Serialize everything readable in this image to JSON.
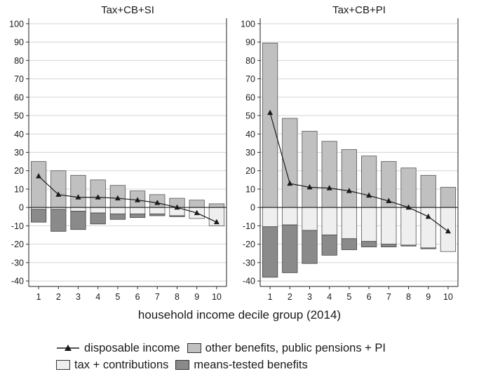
{
  "colors": {
    "other_benefits": "#c0c0c0",
    "tax_contributions": "#efefef",
    "means_tested": "#8a8a8a",
    "line": "#1a1a1a",
    "grid": "#d4d4d4"
  },
  "x_caption": "household income decile group (2014)",
  "legend": {
    "disposable": "disposable income",
    "other_benefits": "other benefits, public pensions + PI",
    "tax": "tax + contributions",
    "means_tested": "means-tested benefits"
  },
  "chart_data": [
    {
      "type": "bar",
      "title": "Tax+CB+SI",
      "categories": [
        "1",
        "2",
        "3",
        "4",
        "5",
        "6",
        "7",
        "8",
        "9",
        "10"
      ],
      "ylim": [
        -43,
        103
      ],
      "yticks": [
        -40,
        -30,
        -20,
        -10,
        0,
        10,
        20,
        30,
        40,
        50,
        60,
        70,
        80,
        90,
        100
      ],
      "grid": true,
      "series": [
        {
          "name": "other benefits, public pensions + PI",
          "values": [
            25,
            20,
            17.5,
            15,
            12,
            9,
            7,
            5,
            4,
            2
          ]
        },
        {
          "name": "tax + contributions",
          "values": [
            -1,
            -1,
            -2,
            -3,
            -3.5,
            -3.5,
            -3.5,
            -4.5,
            -6,
            -10
          ]
        },
        {
          "name": "means-tested benefits",
          "values": [
            -7,
            -12,
            -10,
            -6,
            -3,
            -2,
            -1,
            -0.5,
            0,
            0
          ]
        },
        {
          "name": "disposable income",
          "values": [
            17,
            7,
            5.5,
            5.5,
            5,
            4,
            2.5,
            0,
            -3,
            -8
          ]
        }
      ]
    },
    {
      "type": "bar",
      "title": "Tax+CB+PI",
      "categories": [
        "1",
        "2",
        "3",
        "4",
        "5",
        "6",
        "7",
        "8",
        "9",
        "10"
      ],
      "ylim": [
        -43,
        103
      ],
      "yticks": [
        -40,
        -30,
        -20,
        -10,
        0,
        10,
        20,
        30,
        40,
        50,
        60,
        70,
        80,
        90,
        100
      ],
      "grid": true,
      "series": [
        {
          "name": "other benefits, public pensions + PI",
          "values": [
            89.5,
            48.5,
            41.5,
            36,
            31.5,
            28,
            25,
            21.5,
            17.5,
            11
          ]
        },
        {
          "name": "tax + contributions",
          "values": [
            -10.5,
            -9.5,
            -12.5,
            -15,
            -17,
            -18.5,
            -20,
            -20.5,
            -22,
            -24
          ]
        },
        {
          "name": "means-tested benefits",
          "values": [
            -27.5,
            -26,
            -18,
            -11,
            -6,
            -3,
            -1.5,
            -0.5,
            -0.5,
            0
          ]
        },
        {
          "name": "disposable income",
          "values": [
            51.5,
            13,
            11,
            10.5,
            9,
            6.5,
            3.5,
            0,
            -5,
            -13
          ]
        }
      ]
    }
  ]
}
